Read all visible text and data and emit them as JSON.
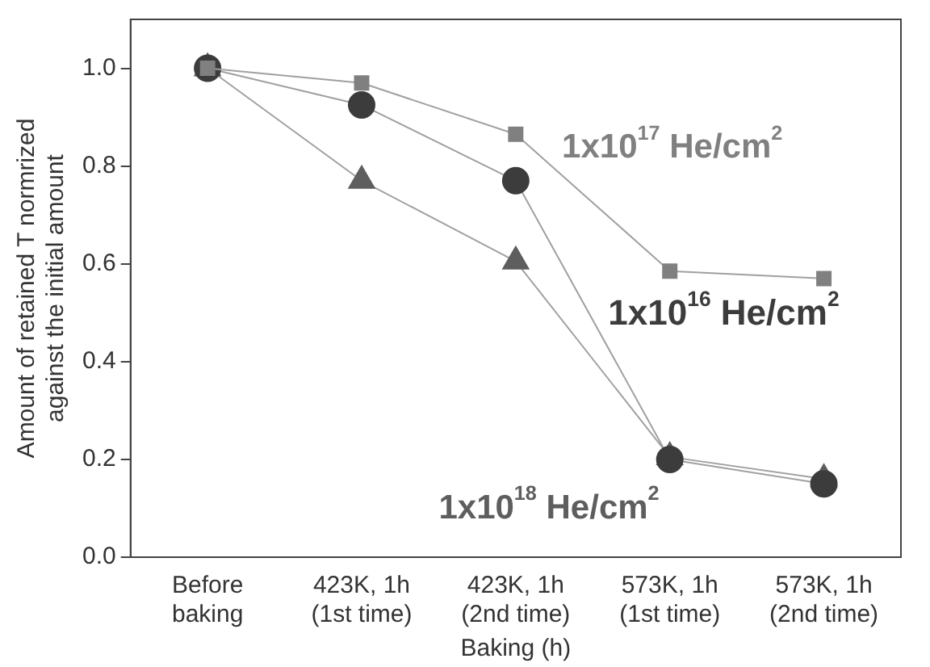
{
  "chart_data": {
    "type": "line",
    "categories": [
      "Before baking",
      "423K, 1h (1st time)",
      "423K, 1h (2nd time)",
      "573K, 1h (1st time)",
      "573K, 1h (2nd time)"
    ],
    "xlabel": "Baking (h)",
    "ylabel": "Amount of retained T normrized\nagainst the initial amount",
    "ylim": [
      0,
      1.1
    ],
    "yticks": [
      {
        "value": 0,
        "label": "0.0"
      },
      {
        "value": 0.2,
        "label": "0.2"
      },
      {
        "value": 0.4,
        "label": "0.4"
      },
      {
        "value": 0.6,
        "label": "0.6"
      },
      {
        "value": 0.8,
        "label": "0.8"
      },
      {
        "value": 1,
        "label": "1.0"
      }
    ],
    "grid": false,
    "legend": false,
    "series": [
      {
        "name": "1x10$^{17}$ He/cm$^{2}$",
        "color": "#808080",
        "marker": "square",
        "values": [
          1.0,
          0.97,
          0.865,
          0.585,
          0.57
        ]
      },
      {
        "name": "1x10$^{16}$ He/cm$^{2}$",
        "color": "#3c3c3c",
        "marker": "circle",
        "values": [
          1.0,
          0.925,
          0.77,
          0.2,
          0.15
        ]
      },
      {
        "name": "1x10$^{18}$ He/cm$^{2}$",
        "color": "#5e5e5e",
        "marker": "triangle",
        "values": [
          1.0,
          0.77,
          0.605,
          0.205,
          0.16
        ]
      }
    ]
  }
}
